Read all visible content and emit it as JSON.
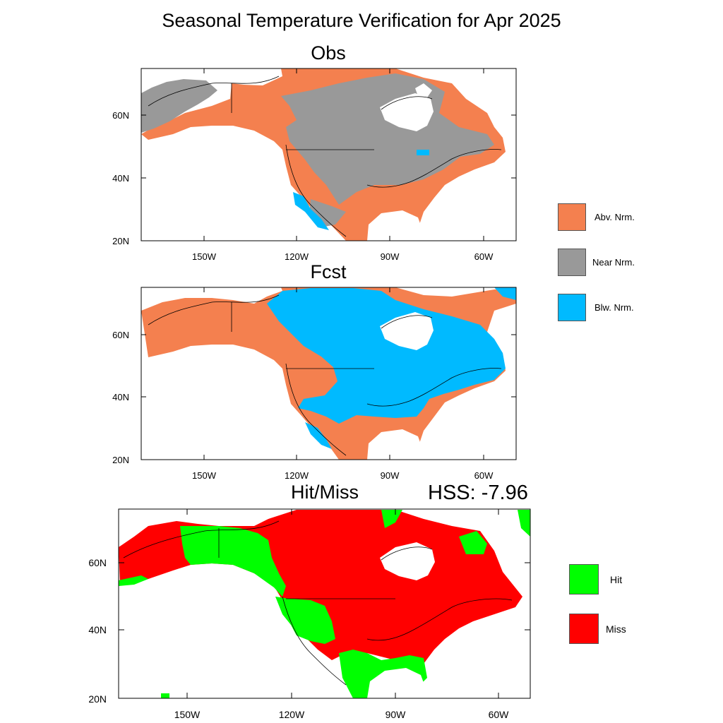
{
  "title": "Seasonal Temperature Verification for Apr 2025",
  "panels": {
    "obs": {
      "title": "Obs"
    },
    "fcst": {
      "title": "Fcst"
    },
    "hitmiss": {
      "title": "Hit/Miss",
      "hss_label": "HSS: -7.96"
    }
  },
  "axes": {
    "lat_labels": [
      "20N",
      "40N",
      "60N"
    ],
    "lon_labels": [
      "150W",
      "120W",
      "90W",
      "60W"
    ]
  },
  "legend_top": [
    {
      "label": "Abv. Nrm.",
      "color": "#f4804f"
    },
    {
      "label": "Near Nrm.",
      "color": "#999999"
    },
    {
      "label": "Blw. Nrm.",
      "color": "#00baff"
    }
  ],
  "legend_bottom": [
    {
      "label": "Hit",
      "color": "#00ff00"
    },
    {
      "label": "Miss",
      "color": "#ff0000"
    }
  ]
}
